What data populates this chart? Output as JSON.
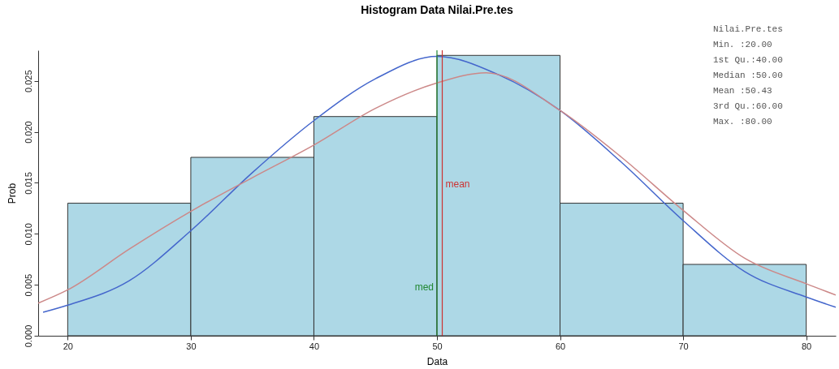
{
  "chart_data": {
    "type": "histogram",
    "title": "Histogram Data  Nilai.Pre.tes",
    "xlabel": "Data",
    "ylabel": "Prob",
    "bins": [
      20,
      30,
      40,
      50,
      60,
      70,
      80
    ],
    "values": [
      0.013,
      0.0175,
      0.0215,
      0.0275,
      0.013,
      0.007
    ],
    "color": "#add8e6",
    "series": [
      {
        "type": "line",
        "color": "#4466cc",
        "x": [
          18,
          20,
          25,
          30,
          35,
          40,
          45,
          50,
          55,
          60,
          65,
          70,
          75,
          80,
          82.4
        ],
        "values": [
          0.0023,
          0.003,
          0.0054,
          0.0103,
          0.016,
          0.0211,
          0.0252,
          0.0274,
          0.0256,
          0.0221,
          0.017,
          0.0113,
          0.0063,
          0.0038,
          0.0028
        ]
      },
      {
        "type": "line",
        "color": "#cc8888",
        "x": [
          17.6,
          20,
          25,
          30,
          35,
          40,
          45,
          50,
          54,
          60,
          65,
          70,
          75,
          80,
          82.4
        ],
        "values": [
          0.0032,
          0.0045,
          0.0085,
          0.0122,
          0.0155,
          0.0187,
          0.0223,
          0.0248,
          0.0258,
          0.0221,
          0.0175,
          0.0123,
          0.0076,
          0.0051,
          0.004
        ]
      }
    ],
    "ref_lines": [
      {
        "axis": "x",
        "value": 50.43,
        "label": "mean",
        "color": "#cc3333"
      },
      {
        "axis": "x",
        "value": 50,
        "label": "med",
        "color": "#228833"
      }
    ],
    "annotations": [
      "Nilai.Pre.tes",
      "Min.   :20.00",
      "1st Qu.:40.00",
      "Median :50.00",
      "Mean   :50.43",
      "3rd Qu.:60.00",
      "Max.   :80.00"
    ],
    "xlim": [
      17.6,
      82.4
    ],
    "ylim": [
      0,
      0.028
    ],
    "xticks": [
      20,
      30,
      40,
      50,
      60,
      70,
      80
    ],
    "yticks": [
      {
        "value": 0,
        "label": "0.000"
      },
      {
        "value": 0.005,
        "label": "0.005"
      },
      {
        "value": 0.01,
        "label": "0.010"
      },
      {
        "value": 0.015,
        "label": "0.015"
      },
      {
        "value": 0.02,
        "label": "0.020"
      },
      {
        "value": 0.025,
        "label": "0.025"
      }
    ],
    "grid": false
  }
}
